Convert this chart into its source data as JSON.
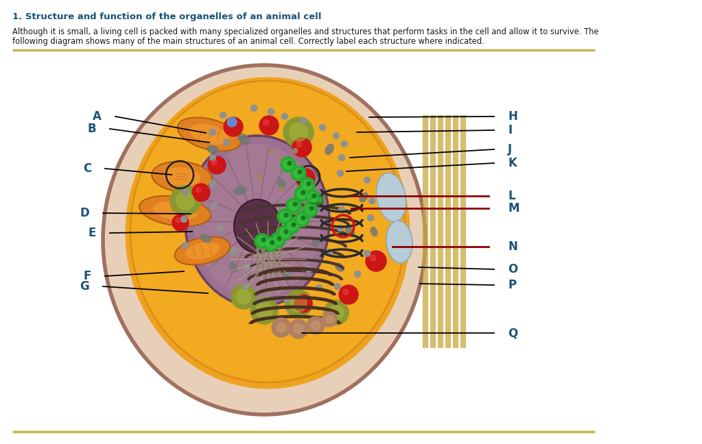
{
  "title": "1. Structure and function of the organelles of an animal cell",
  "body_text_line1": "Although it is small, a living cell is packed with many specialized organelles and structures that perform tasks in the cell and allow it to survive. The",
  "body_text_line2": "following diagram shows many of the main structures of an animal cell. Correctly label each structure where indicated.",
  "title_color": "#1a5276",
  "body_color": "#1a1a1a",
  "bg_color": "#ffffff",
  "separator_color": "#c8b450",
  "left_labels": [
    "A",
    "B",
    "C",
    "D",
    "E",
    "F",
    "G"
  ],
  "right_labels": [
    "H",
    "I",
    "J",
    "K",
    "L",
    "M",
    "N",
    "O",
    "P",
    "Q"
  ],
  "label_color": "#1a5276",
  "label_fontsize": 12,
  "fig_width": 10.23,
  "fig_height": 6.48
}
